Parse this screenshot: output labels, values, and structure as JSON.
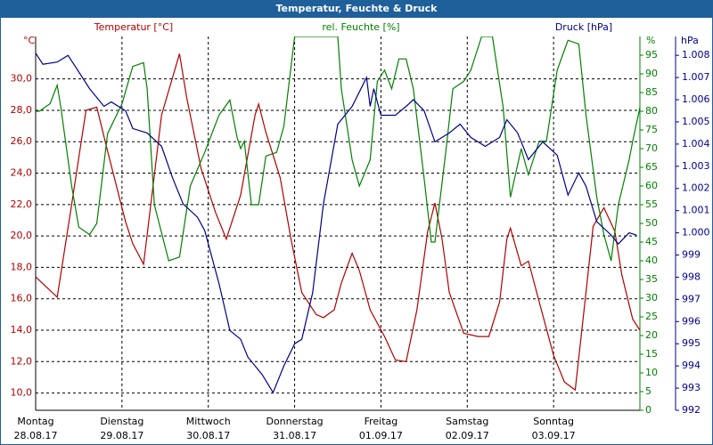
{
  "chart_data": {
    "type": "line",
    "title": "Temperatur, Feuchte & Druck",
    "ylabel": "°C",
    "y2label": "%",
    "y3label": "hPa",
    "xlim": [
      0,
      168
    ],
    "xticks": [
      {
        "value": 0,
        "label": [
          "Montag",
          "28.08.17"
        ]
      },
      {
        "value": 24,
        "label": [
          "Dienstag",
          "29.08.17"
        ]
      },
      {
        "value": 48,
        "label": [
          "Mittwoch",
          "30.08.17"
        ]
      },
      {
        "value": 72,
        "label": [
          "Donnerstag",
          "31.08.17"
        ]
      },
      {
        "value": 96,
        "label": [
          "Freitag",
          "01.09.17"
        ]
      },
      {
        "value": 120,
        "label": [
          "Samstag",
          "02.09.17"
        ]
      },
      {
        "value": 144,
        "label": [
          "Sonntag",
          "03.09.17"
        ]
      }
    ],
    "ylim": [
      8.9,
      32.7
    ],
    "yticks": [
      {
        "value": 10,
        "label": "10,0"
      },
      {
        "value": 12,
        "label": "12,0"
      },
      {
        "value": 14,
        "label": "14,0"
      },
      {
        "value": 16,
        "label": "16,0"
      },
      {
        "value": 18,
        "label": "18,0"
      },
      {
        "value": 20,
        "label": "20,0"
      },
      {
        "value": 22,
        "label": "22,0"
      },
      {
        "value": 24,
        "label": "24,0"
      },
      {
        "value": 26,
        "label": "26,0"
      },
      {
        "value": 28,
        "label": "28,0"
      },
      {
        "value": 30,
        "label": "30,0"
      }
    ],
    "y2lim": [
      0,
      100
    ],
    "y2ticks": [
      0,
      5,
      10,
      15,
      20,
      25,
      30,
      35,
      40,
      45,
      50,
      55,
      60,
      65,
      70,
      75,
      80,
      85,
      90,
      95
    ],
    "y3lim": [
      992,
      1008.85
    ],
    "y3ticks": [
      992,
      993,
      994,
      995,
      996,
      997,
      998,
      999,
      {
        "value": 1000,
        "label": "1.000"
      },
      {
        "value": 1001,
        "label": "1.001"
      },
      {
        "value": 1002,
        "label": "1.002"
      },
      {
        "value": 1003,
        "label": "1.003"
      },
      {
        "value": 1004,
        "label": "1.004"
      },
      {
        "value": 1005,
        "label": "1.005"
      },
      {
        "value": 1006,
        "label": "1.006"
      },
      {
        "value": 1007,
        "label": "1.007"
      },
      {
        "value": 1008,
        "label": "1.008"
      }
    ],
    "grid": true,
    "series": [
      {
        "name": "Temperatur [°C]",
        "color": "#b00000",
        "axis": "y",
        "x": [
          0,
          6,
          10,
          14,
          17,
          20,
          25,
          27,
          30,
          35,
          40,
          42,
          46,
          50,
          53,
          57,
          61,
          62,
          64,
          68,
          71,
          74,
          78,
          80,
          83,
          85,
          88,
          90,
          93,
          97,
          100,
          103,
          106,
          109,
          111,
          113,
          115,
          119,
          123,
          126,
          129,
          131,
          132,
          135,
          137,
          140,
          144,
          147,
          150,
          153,
          155,
          158,
          161,
          163,
          166,
          168
        ],
        "values": [
          17.4,
          16.1,
          22,
          28,
          28.2,
          25.4,
          20.9,
          19.5,
          18.2,
          27.7,
          31.6,
          28.8,
          24.3,
          21.5,
          19.8,
          22.6,
          27.7,
          28.4,
          26.6,
          23.7,
          19.8,
          16.4,
          15.0,
          14.8,
          15.3,
          17.0,
          18.9,
          17.8,
          15.3,
          13.6,
          12.1,
          12.0,
          15.3,
          20.3,
          22.1,
          19.8,
          16.4,
          13.8,
          13.6,
          13.6,
          15.8,
          19.8,
          20.5,
          18.1,
          18.4,
          15.8,
          12.4,
          10.7,
          10.2,
          16.4,
          20.6,
          21.8,
          20.3,
          17.5,
          14.7,
          14.0
        ]
      },
      {
        "name": "rel. Feuchte [%]",
        "color": "#008000",
        "axis": "y2",
        "x": [
          0,
          1,
          4,
          6,
          7,
          10,
          12,
          15,
          17,
          20,
          24,
          27,
          30,
          31,
          33,
          37,
          40,
          43,
          47,
          51,
          54,
          56,
          57,
          58,
          60,
          62,
          64,
          67,
          69,
          72,
          74,
          82,
          84,
          85,
          88,
          90,
          93,
          95,
          97,
          99,
          101,
          103,
          105,
          108,
          110,
          111,
          114,
          116,
          119,
          121,
          124,
          127,
          130,
          132,
          135,
          137,
          140,
          142,
          145,
          148,
          151,
          153,
          156,
          158,
          160,
          162,
          165,
          166,
          168
        ],
        "values": [
          80,
          80,
          82,
          87,
          81,
          60,
          49,
          47,
          50,
          74,
          82,
          92,
          93,
          86,
          55,
          40,
          41,
          60,
          69,
          79,
          83,
          73,
          70,
          72,
          55,
          55,
          68,
          69,
          76,
          100,
          100,
          100,
          100,
          86,
          67,
          60,
          67,
          88,
          91,
          86,
          94,
          94,
          86,
          62,
          45,
          45,
          69,
          86,
          88,
          91,
          100,
          100,
          81,
          57,
          70,
          63,
          72,
          72,
          91,
          99,
          98,
          79,
          57,
          47,
          40,
          55,
          67,
          72,
          81
        ]
      },
      {
        "name": "Druck [hPa]",
        "color": "#00008b",
        "axis": "y3",
        "x": [
          0,
          2,
          6,
          9,
          11,
          15,
          19,
          21,
          25,
          27,
          31,
          35,
          38,
          41,
          45,
          47,
          51,
          54,
          57,
          59,
          63,
          66,
          69,
          72,
          74,
          77,
          80,
          84,
          88,
          92,
          93,
          94,
          96,
          100,
          103,
          105,
          108,
          111,
          115,
          118,
          121,
          125,
          129,
          131,
          134,
          137,
          141,
          145,
          148,
          151,
          153,
          156,
          160,
          162,
          165,
          167
        ],
        "values": [
          1008.1,
          1007.6,
          1007.7,
          1008.0,
          1007.5,
          1006.5,
          1005.7,
          1005.9,
          1005.5,
          1004.7,
          1004.5,
          1003.9,
          1002.5,
          1001.3,
          1000.7,
          1000.1,
          997.7,
          995.6,
          995.2,
          994.4,
          993.6,
          992.8,
          994.0,
          995.0,
          995.2,
          997.3,
          1001.3,
          1004.9,
          1005.7,
          1007.0,
          1005.7,
          1006.5,
          1005.3,
          1005.3,
          1005.7,
          1006.0,
          1005.5,
          1004.1,
          1004.5,
          1004.9,
          1004.3,
          1003.9,
          1004.3,
          1005.1,
          1004.5,
          1003.3,
          1004.1,
          1003.5,
          1001.7,
          1002.7,
          1002.1,
          1000.5,
          999.9,
          999.5,
          1000.0,
          999.9
        ]
      }
    ]
  }
}
